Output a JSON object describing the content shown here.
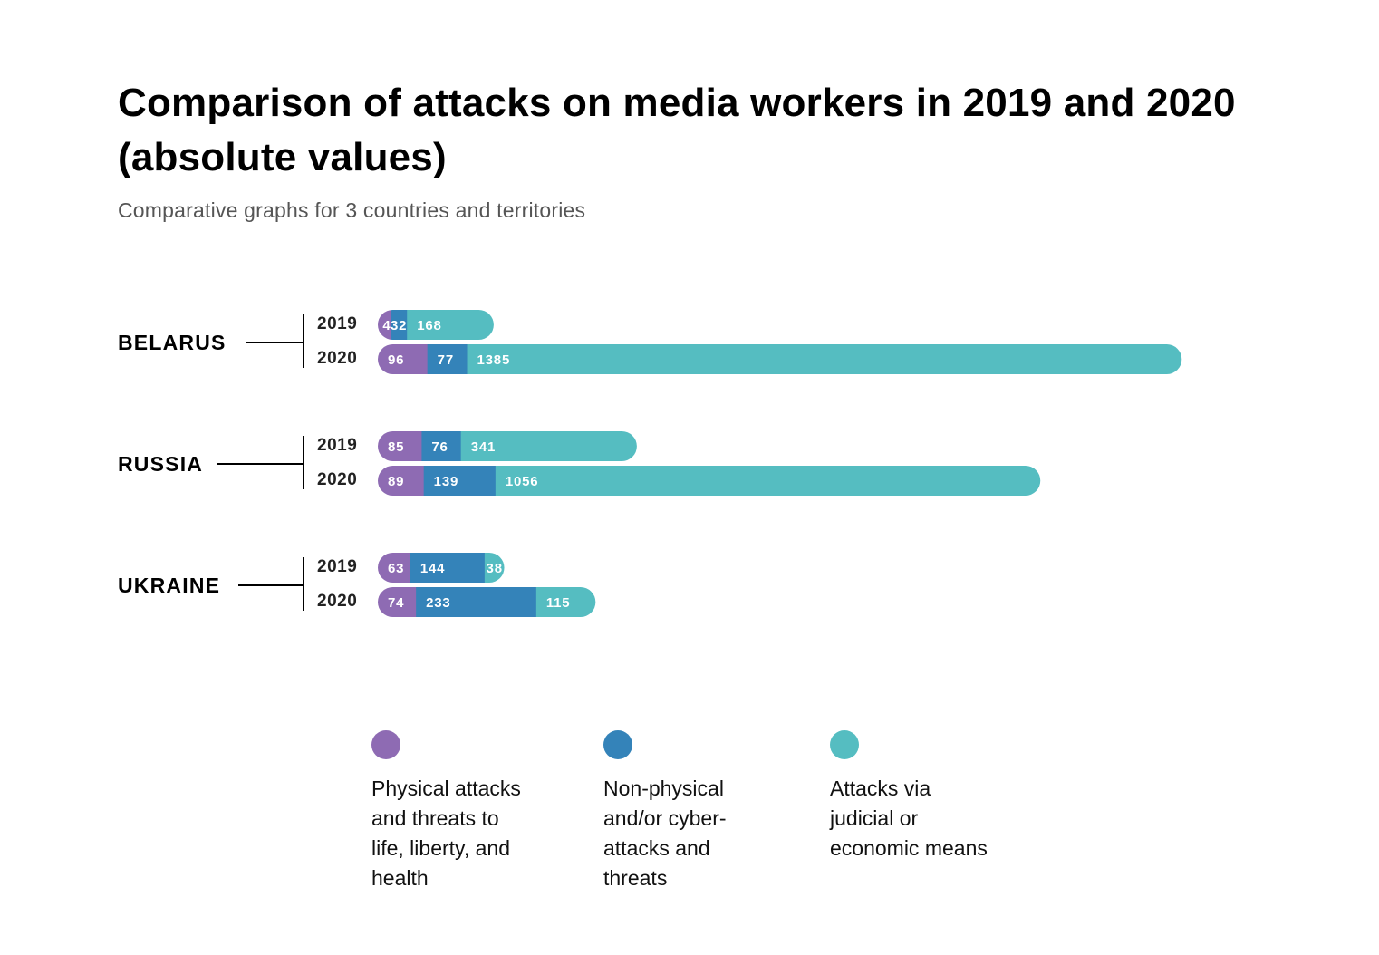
{
  "title": "Comparison of attacks on media workers in 2019 and 2020 (absolute values)",
  "subtitle": "Comparative graphs for 3 countries and territories",
  "colors": {
    "physical": "#8e6bb3",
    "nonphysical": "#3483b9",
    "judicial": "#55bdc1"
  },
  "chart_data": {
    "type": "bar",
    "orientation": "horizontal",
    "stacked": true,
    "title": "Comparison of attacks on media workers in 2019 and 2020 (absolute values)",
    "subtitle": "Comparative graphs for 3 countries and territories",
    "series_names": [
      "Physical attacks and threats to life, liberty, and health",
      "Non-physical and/or cyber-attacks and threats",
      "Attacks via judicial or economic means"
    ],
    "groups": [
      {
        "country": "BELARUS",
        "rows": [
          {
            "year": "2019",
            "values": [
              4,
              32,
              168
            ]
          },
          {
            "year": "2020",
            "values": [
              96,
              77,
              1385
            ]
          }
        ]
      },
      {
        "country": "RUSSIA",
        "rows": [
          {
            "year": "2019",
            "values": [
              85,
              76,
              341
            ]
          },
          {
            "year": "2020",
            "values": [
              89,
              139,
              1056
            ]
          }
        ]
      },
      {
        "country": "UKRAINE",
        "rows": [
          {
            "year": "2019",
            "values": [
              63,
              144,
              38
            ]
          },
          {
            "year": "2020",
            "values": [
              74,
              233,
              115
            ]
          }
        ]
      }
    ],
    "grid": false,
    "legend_position": "bottom"
  },
  "legend": [
    {
      "label": "Physical attacks and threats to life, liberty, and health",
      "color_key": "physical"
    },
    {
      "label": "Non-physical and/or cyber-attacks and threats",
      "color_key": "nonphysical"
    },
    {
      "label": "Attacks via judicial or economic means",
      "color_key": "judicial"
    }
  ]
}
